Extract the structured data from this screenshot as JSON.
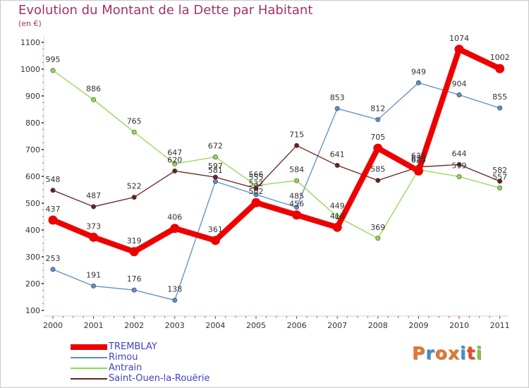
{
  "chart_data": {
    "type": "line",
    "title": "Evolution du Montant de la Dette par Habitant",
    "subtitle": "(en €)",
    "x": [
      "2000",
      "2001",
      "2002",
      "2003",
      "2004",
      "2005",
      "2006",
      "2007",
      "2008",
      "2009",
      "2010",
      "2011"
    ],
    "ylim": [
      100,
      1100
    ],
    "yticks": [
      100,
      200,
      300,
      400,
      500,
      600,
      700,
      800,
      900,
      1000,
      1100
    ],
    "grid": false,
    "legend_position": "bottom-left",
    "series": [
      {
        "name": "TREMBLAY",
        "color": "#ee0000",
        "emphasis": true,
        "values": [
          437,
          373,
          319,
          406,
          361,
          502,
          456,
          410,
          705,
          620,
          1074,
          1002
        ]
      },
      {
        "name": "Rimou",
        "color": "#5b8ec6",
        "emphasis": false,
        "values": [
          253,
          191,
          176,
          138,
          581,
          532,
          485,
          853,
          812,
          949,
          904,
          855
        ]
      },
      {
        "name": "Antrain",
        "color": "#90d850",
        "emphasis": false,
        "values": [
          995,
          886,
          765,
          647,
          672,
          566,
          584,
          449,
          369,
          625,
          599,
          557
        ]
      },
      {
        "name": "Saint-Ouen-la-Rouërie",
        "color": "#6a2020",
        "emphasis": false,
        "values": [
          548,
          487,
          522,
          620,
          597,
          555,
          715,
          641,
          585,
          635,
          644,
          582
        ]
      }
    ]
  },
  "logo": {
    "text": "Proxiti"
  }
}
